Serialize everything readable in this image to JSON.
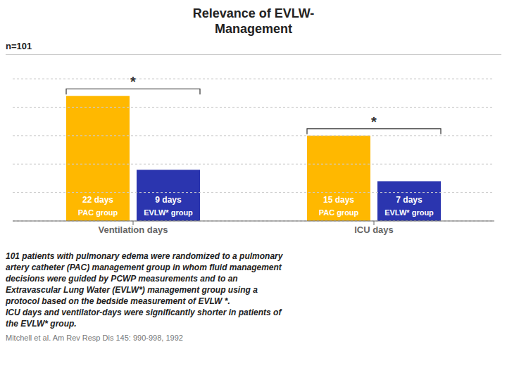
{
  "chart_data": {
    "type": "bar",
    "title": [
      "Relevance of EVLW-",
      "Management"
    ],
    "annotations": [
      "n=101"
    ],
    "categories": [
      "Ventilation days",
      "ICU days"
    ],
    "series": [
      {
        "name": "PAC group",
        "color": "#FFB800",
        "values": [
          22,
          15
        ],
        "value_labels": [
          "22 days",
          "15 days"
        ]
      },
      {
        "name": "EVLW* group",
        "color": "#2B35AF",
        "values": [
          9,
          7
        ],
        "value_labels": [
          "9 days",
          "7 days"
        ]
      }
    ],
    "ylim": [
      0,
      25
    ],
    "yticks": [
      0,
      5,
      10,
      15,
      20,
      25
    ],
    "grid": true,
    "tick_labels": "x",
    "data_labels": true,
    "significance": [
      "*",
      "*"
    ],
    "body_text": [
      "101 patients with pulmonary edema were randomized to a pulmonary",
      "artery catheter (PAC) management group in whom fluid management",
      "decisions were guided by PCWP measurements and to an",
      "Extravascular Lung Water (EVLW*) management group using a",
      "protocol based on the bedside measurement of EVLW *.",
      "ICU days and ventilator-days were significantly shorter in patients of",
      "the EVLW* group."
    ],
    "citation": "Mitchell et al. Am Rev Resp Dis 145: 990-998, 1992"
  }
}
